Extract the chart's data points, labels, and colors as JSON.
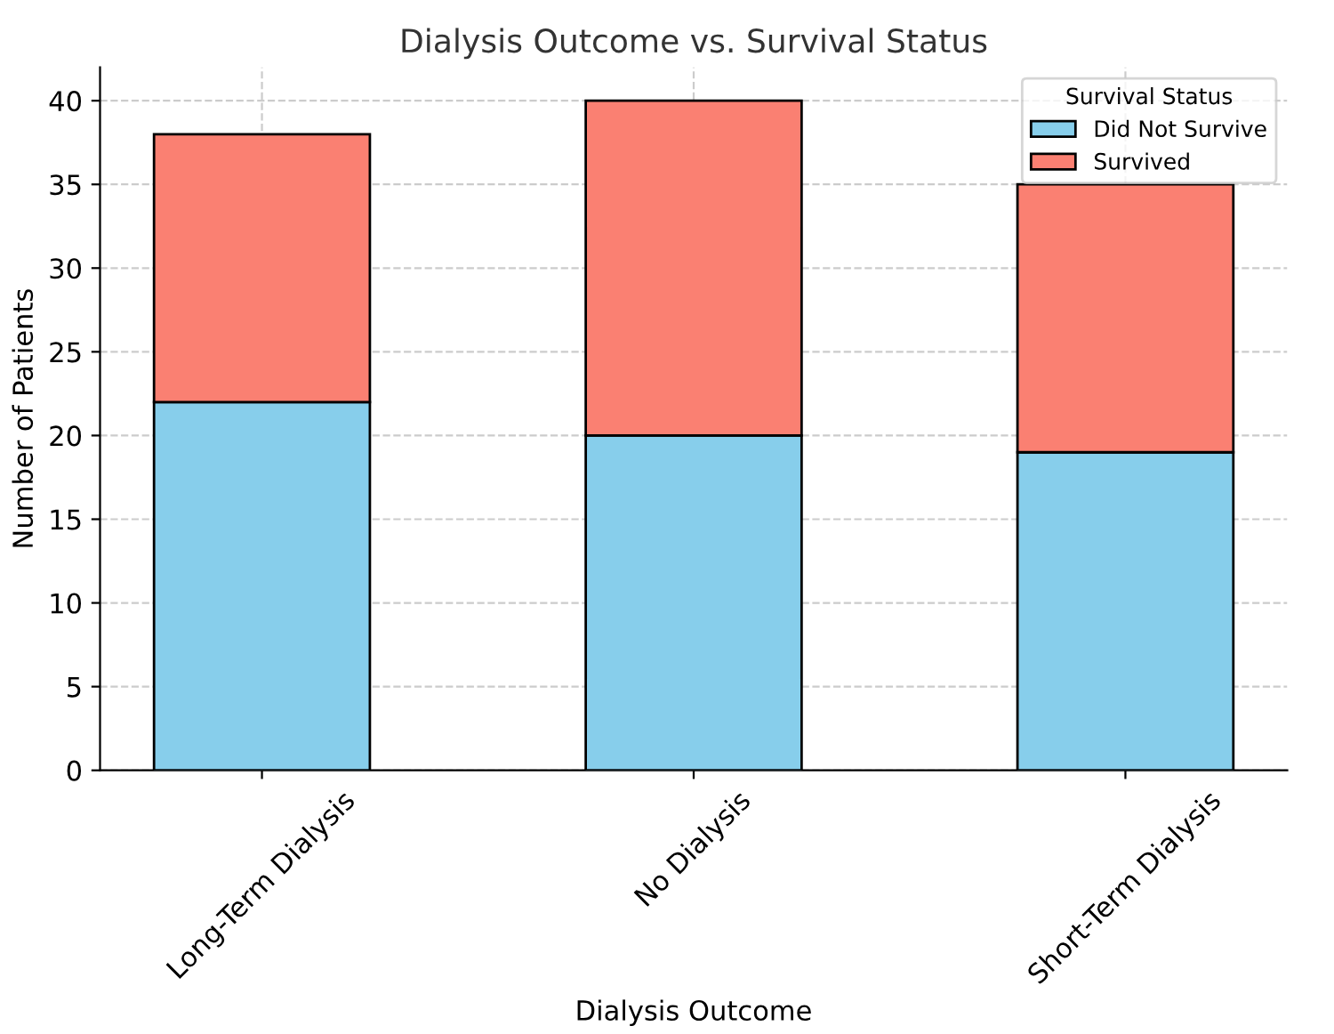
{
  "chart_data": {
    "type": "bar",
    "title": "Dialysis Outcome vs. Survival Status",
    "xlabel": "Dialysis Outcome",
    "ylabel": "Number of Patients",
    "legend_title": "Survival Status",
    "categories": [
      "Long-Term Dialysis",
      "No Dialysis",
      "Short-Term Dialysis"
    ],
    "series": [
      {
        "name": "Did Not Survive",
        "color": "#87ceeb",
        "values": [
          22,
          20,
          19
        ]
      },
      {
        "name": "Survived",
        "color": "#fa8072",
        "values": [
          16,
          20,
          16
        ]
      }
    ],
    "stacked": true,
    "ylim": [
      0,
      42
    ],
    "yticks": [
      0,
      5,
      10,
      15,
      20,
      25,
      30,
      35,
      40
    ],
    "grid": true,
    "legend": "top right"
  }
}
